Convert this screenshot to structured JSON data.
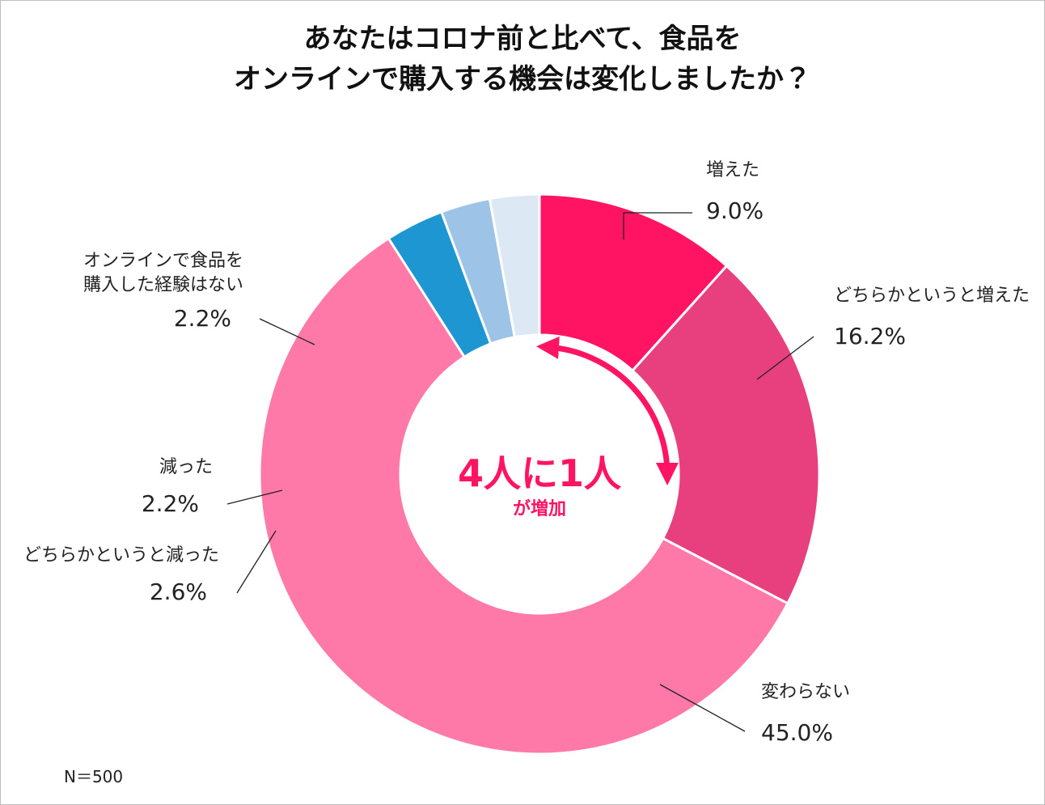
{
  "chart_data": {
    "type": "pie",
    "title": "あなたはコロナ前と比べて、食品を\nオンラインで購入する機会は変化しましたか？",
    "categories": [
      "増えた",
      "どちらかというと増えた",
      "変わらない",
      "どちらかというと減った",
      "減った",
      "オンラインで食品を\n購入した経験はない"
    ],
    "values": [
      9.0,
      16.2,
      45.0,
      2.6,
      2.2,
      2.2
    ],
    "value_labels": [
      "9.0%",
      "16.2%",
      "45.0%",
      "2.6%",
      "2.2%",
      "2.2%"
    ],
    "colors": [
      "#ff1464",
      "#e8407f",
      "#ff79a8",
      "#1e96d2",
      "#9dc3e6",
      "#dde8f5"
    ],
    "annotations": [
      "4人に1人",
      "が増加"
    ],
    "note": "N＝500"
  }
}
